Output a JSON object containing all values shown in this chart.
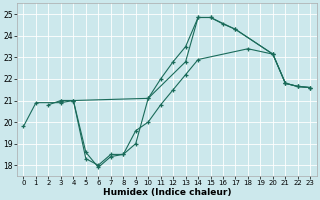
{
  "xlabel": "Humidex (Indice chaleur)",
  "xlim": [
    -0.5,
    23.5
  ],
  "ylim": [
    17.5,
    25.5
  ],
  "yticks": [
    18,
    19,
    20,
    21,
    22,
    23,
    24,
    25
  ],
  "xticks": [
    0,
    1,
    2,
    3,
    4,
    5,
    6,
    7,
    8,
    9,
    10,
    11,
    12,
    13,
    14,
    15,
    16,
    17,
    18,
    19,
    20,
    21,
    22,
    23
  ],
  "bg_color": "#cce8ec",
  "line_color": "#1a6b5a",
  "grid_color": "#ffffff",
  "line1_x": [
    0,
    1,
    3,
    4,
    10,
    11,
    12,
    13,
    14,
    15,
    16,
    17,
    20,
    21,
    22,
    23
  ],
  "line1_y": [
    19.8,
    20.9,
    20.9,
    21.0,
    21.1,
    22.0,
    22.8,
    23.5,
    24.85,
    24.85,
    24.55,
    24.3,
    23.15,
    21.8,
    21.65,
    21.6
  ],
  "line2_x": [
    3,
    4,
    5,
    6,
    7,
    8,
    9,
    10,
    11,
    12,
    13,
    14,
    18,
    20,
    21,
    22,
    23
  ],
  "line2_y": [
    21.0,
    21.0,
    18.3,
    18.0,
    18.5,
    18.5,
    19.6,
    20.0,
    20.8,
    21.5,
    22.2,
    22.9,
    23.4,
    23.15,
    21.8,
    21.65,
    21.6
  ],
  "line3_x": [
    2,
    3,
    4,
    5,
    6,
    7,
    8,
    9,
    10,
    13,
    14,
    15,
    17,
    20,
    21,
    22,
    23
  ],
  "line3_y": [
    20.8,
    21.0,
    21.0,
    18.6,
    17.9,
    18.4,
    18.5,
    19.0,
    21.1,
    22.8,
    24.85,
    24.85,
    24.3,
    23.15,
    21.8,
    21.65,
    21.6
  ]
}
